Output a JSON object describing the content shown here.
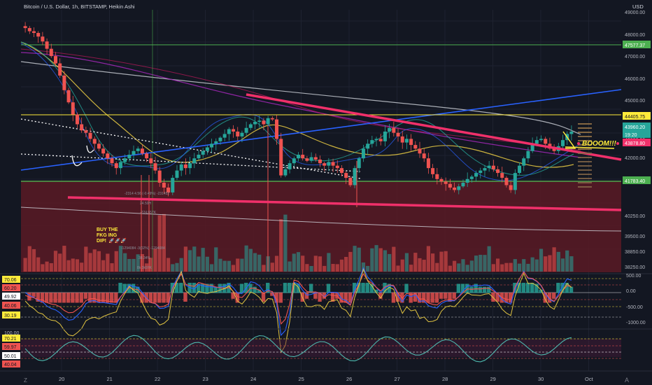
{
  "header": {
    "symbol_title": "Bitcoin / U.S. Dollar, 1h, BITSTAMP, Heikin Ashi",
    "currency": "USD"
  },
  "colors": {
    "background": "#131722",
    "bull": "#26a69a",
    "bear": "#ef5350",
    "trendline_pink": "#f0306a",
    "trendline_blue": "#2962ff",
    "ma_yellow": "#e0c341",
    "ma_white": "#d1d4dc",
    "ma_purple": "#9c27b0",
    "zone_red": "#5a1a25",
    "grid": "#1e2230",
    "annotation_yellow": "#ffeb3b"
  },
  "chart_data": {
    "type": "candlestick",
    "price_axis_ticks": [
      "49000.00",
      "48000.00",
      "47000.00",
      "46000.00",
      "45000.00",
      "43000.00",
      "42000.00",
      "40250.00",
      "39500.00",
      "38850.00",
      "38250.00"
    ],
    "price_tags": [
      {
        "text": "47577.37",
        "color": "#4caf50"
      },
      {
        "text": "44405.75",
        "color": "#ffeb3b"
      },
      {
        "text": "43960.20",
        "color": "#26a69a"
      },
      {
        "text": "19:20",
        "color": "#26a69a"
      },
      {
        "text": "43878.80",
        "color": "#f0306a"
      },
      {
        "text": "41783.40",
        "color": "#4caf50"
      }
    ],
    "x_ticks": [
      "20",
      "21",
      "22",
      "23",
      "24",
      "25",
      "26",
      "27",
      "28",
      "29",
      "30",
      "Oct"
    ],
    "annotations": [
      {
        "text": "BOOOM!!!",
        "color": "#ffeb3b"
      },
      {
        "text": "BUY THE",
        "color": "#ffeb3b"
      },
      {
        "text": "FKG ING",
        "color": "#ffeb3b"
      },
      {
        "text": "DIP!",
        "color": "#ffeb3b"
      }
    ],
    "faint_labels": [
      "-2314 4.56 (-0.49%) -231452",
      "24.50H",
      "-224.657K",
      "-1294084 -3(02%) -1294084",
      "38.34%",
      "8k 3k97K"
    ],
    "candles": [
      48250,
      48120,
      48050,
      47900,
      47700,
      47400,
      47100,
      46800,
      46300,
      45700,
      45200,
      44700,
      44300,
      44050,
      43950,
      43700,
      43500,
      43300,
      43100,
      42900,
      42700,
      42500,
      42750,
      42900,
      43050,
      43200,
      43300,
      43100,
      42900,
      42700,
      42400,
      41900,
      41700,
      41500,
      42100,
      42400,
      42650,
      42500,
      42700,
      42900,
      43050,
      43200,
      43350,
      43500,
      43600,
      43750,
      43900,
      44100,
      44000,
      43800,
      43950,
      44150,
      44300,
      44400,
      44450,
      44300,
      44550,
      44500,
      43700,
      42200,
      42450,
      42700,
      42900,
      43050,
      42900,
      42800,
      42950,
      42850,
      42700,
      42600,
      42750,
      42600,
      42500,
      42300,
      42100,
      41800,
      42500,
      42900,
      43300,
      43500,
      43650,
      43700,
      43600,
      44000,
      44150,
      43950,
      43800,
      43550,
      43700,
      43450,
      43300,
      43100,
      42900,
      42500,
      42250,
      42050,
      41950,
      41850,
      41700,
      41600,
      41750,
      41900,
      42050,
      42150,
      42300,
      42400,
      42500,
      42600,
      42450,
      42300,
      42100,
      41800,
      41600,
      42300,
      42600,
      42900,
      43200,
      43500,
      43650,
      43700,
      43500,
      43300,
      43200,
      43400,
      43650,
      43900,
      44000
    ],
    "oscillator1": {
      "axis_labels": [
        "500.00",
        "0.00",
        "-500.00",
        "-1000.00"
      ],
      "left_tags": [
        {
          "text": "70.06",
          "color": "#ffeb3b"
        },
        {
          "text": "60.20",
          "color": "#ef5350"
        },
        {
          "text": "49.92",
          "color": "#ffffff"
        },
        {
          "text": "40.06",
          "color": "#ef5350"
        },
        {
          "text": "30.19",
          "color": "#ffeb3b"
        }
      ]
    },
    "oscillator2": {
      "axis_labels": [
        "100.00"
      ],
      "left_tags": [
        {
          "text": "70.21",
          "color": "#ffeb3b"
        },
        {
          "text": "59.97",
          "color": "#ef5350"
        },
        {
          "text": "50.01",
          "color": "#ffffff"
        },
        {
          "text": "40.04",
          "color": "#ef5350"
        }
      ]
    }
  }
}
